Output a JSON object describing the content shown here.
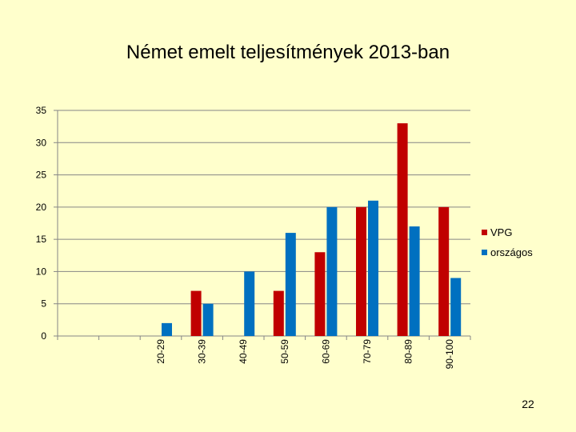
{
  "slide": {
    "title": "Német emelt teljesítmények 2013-ban",
    "page_number": "22"
  },
  "chart_data": {
    "type": "bar",
    "title": "Német emelt teljesítmények 2013-ban",
    "xlabel": "",
    "ylabel": "",
    "categories": [
      "",
      "",
      "20-29",
      "30-39",
      "40-49",
      "50-59",
      "60-69",
      "70-79",
      "80-89",
      "90-100"
    ],
    "series": [
      {
        "name": "VPG",
        "color": "#C00000",
        "values": [
          0,
          0,
          0,
          7,
          0,
          7,
          13,
          20,
          33,
          20
        ]
      },
      {
        "name": "országos",
        "color": "#0070C0",
        "values": [
          0,
          0,
          2,
          5,
          10,
          16,
          20,
          21,
          17,
          9
        ]
      }
    ],
    "ylim": [
      0,
      35
    ],
    "yticks": [
      0,
      5,
      10,
      15,
      20,
      25,
      30,
      35
    ],
    "grid": true,
    "legend": "right"
  }
}
